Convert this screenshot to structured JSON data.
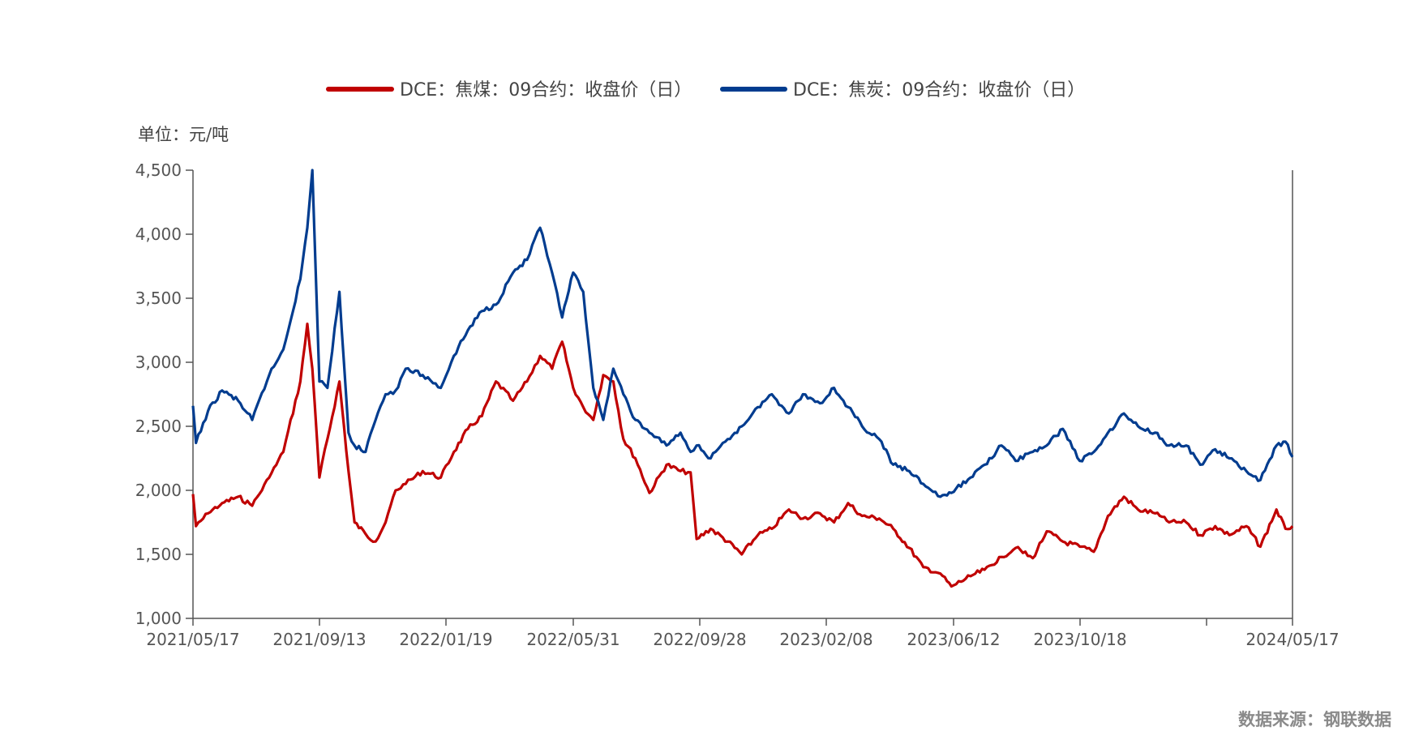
{
  "chart_data": {
    "type": "line",
    "unit_label": "单位：元/吨",
    "source": "数据来源：钢联数据",
    "legend_position": "top-center",
    "ylim": [
      1000,
      4500
    ],
    "y_ticks": [
      1000,
      1500,
      2000,
      2500,
      3000,
      3500,
      4000,
      4500
    ],
    "y_tick_labels": [
      "1,000",
      "1,500",
      "2,000",
      "2,500",
      "3,000",
      "3,500",
      "4,000",
      "4,500"
    ],
    "x_tick_labels": [
      "2021/05/17",
      "2021/09/13",
      "2022/01/19",
      "2022/05/31",
      "2022/09/28",
      "2023/02/08",
      "2023/06/12",
      "2023/10/18",
      "2024/05/17"
    ],
    "grid": false,
    "series": [
      {
        "name": "DCE：焦煤：09合约：收盘价（日）",
        "color": "#C00000",
        "x": [
          "2021-05-17",
          "2021-05-20",
          "2021-06-01",
          "2021-06-15",
          "2021-07-01",
          "2021-07-15",
          "2021-08-01",
          "2021-08-15",
          "2021-09-01",
          "2021-09-08",
          "2021-09-13",
          "2021-09-20",
          "2021-09-28",
          "2021-10-10",
          "2021-10-19",
          "2021-10-25",
          "2021-11-05",
          "2021-11-15",
          "2021-11-25",
          "2021-12-05",
          "2021-12-15",
          "2022-01-01",
          "2022-01-19",
          "2022-02-01",
          "2022-02-15",
          "2022-03-01",
          "2022-03-15",
          "2022-04-01",
          "2022-04-15",
          "2022-04-28",
          "2022-05-10",
          "2022-05-20",
          "2022-05-31",
          "2022-06-10",
          "2022-06-20",
          "2022-06-30",
          "2022-07-10",
          "2022-07-20",
          "2022-08-01",
          "2022-08-15",
          "2022-09-01",
          "2022-09-15",
          "2022-09-25",
          "2022-10-01",
          "2022-10-15",
          "2022-11-01",
          "2022-11-15",
          "2022-12-01",
          "2022-12-15",
          "2023-01-01",
          "2023-01-15",
          "2023-02-01",
          "2023-02-15",
          "2023-03-01",
          "2023-03-15",
          "2023-04-01",
          "2023-04-15",
          "2023-05-01",
          "2023-05-15",
          "2023-06-01",
          "2023-06-12",
          "2023-07-01",
          "2023-07-15",
          "2023-08-01",
          "2023-08-15",
          "2023-09-01",
          "2023-09-15",
          "2023-10-01",
          "2023-10-18",
          "2023-11-01",
          "2023-11-15",
          "2023-12-01",
          "2023-12-15",
          "2024-01-01",
          "2024-01-15",
          "2024-02-01",
          "2024-02-15",
          "2024-03-01",
          "2024-03-15",
          "2024-04-01",
          "2024-04-15",
          "2024-05-01",
          "2024-05-10",
          "2024-05-17"
        ],
        "values": [
          1970,
          1720,
          1820,
          1900,
          1950,
          1880,
          2100,
          2300,
          2850,
          3300,
          2950,
          2100,
          2400,
          2850,
          2150,
          1750,
          1660,
          1600,
          1750,
          2000,
          2050,
          2150,
          2100,
          2300,
          2480,
          2580,
          2850,
          2700,
          2850,
          3050,
          2950,
          3160,
          2800,
          2650,
          2550,
          2900,
          2850,
          2400,
          2250,
          1980,
          2200,
          2150,
          2140,
          1620,
          1700,
          1600,
          1500,
          1650,
          1700,
          1850,
          1780,
          1820,
          1750,
          1900,
          1800,
          1780,
          1700,
          1550,
          1400,
          1350,
          1250,
          1330,
          1380,
          1480,
          1550,
          1470,
          1680,
          1600,
          1560,
          1520,
          1800,
          1950,
          1850,
          1820,
          1750,
          1750,
          1650,
          1720,
          1650,
          1720,
          1560,
          1850,
          1700,
          1720
        ]
      },
      {
        "name": "DCE：焦炭：09合约：收盘价（日）",
        "color": "#003C8F",
        "x": [
          "2021-05-17",
          "2021-05-20",
          "2021-06-01",
          "2021-06-15",
          "2021-07-01",
          "2021-07-15",
          "2021-08-01",
          "2021-08-15",
          "2021-09-01",
          "2021-09-08",
          "2021-09-13",
          "2021-09-20",
          "2021-09-28",
          "2021-10-10",
          "2021-10-19",
          "2021-10-25",
          "2021-11-05",
          "2021-11-15",
          "2021-11-25",
          "2021-12-05",
          "2021-12-15",
          "2022-01-01",
          "2022-01-19",
          "2022-02-01",
          "2022-02-15",
          "2022-03-01",
          "2022-03-15",
          "2022-04-01",
          "2022-04-15",
          "2022-04-28",
          "2022-05-10",
          "2022-05-20",
          "2022-05-31",
          "2022-06-10",
          "2022-06-20",
          "2022-06-30",
          "2022-07-10",
          "2022-07-20",
          "2022-08-01",
          "2022-08-15",
          "2022-09-01",
          "2022-09-15",
          "2022-09-25",
          "2022-10-01",
          "2022-10-15",
          "2022-11-01",
          "2022-11-15",
          "2022-12-01",
          "2022-12-15",
          "2023-01-01",
          "2023-01-15",
          "2023-02-01",
          "2023-02-15",
          "2023-03-01",
          "2023-03-15",
          "2023-04-01",
          "2023-04-15",
          "2023-05-01",
          "2023-05-15",
          "2023-06-01",
          "2023-06-12",
          "2023-07-01",
          "2023-07-15",
          "2023-08-01",
          "2023-08-15",
          "2023-09-01",
          "2023-09-15",
          "2023-10-01",
          "2023-10-18",
          "2023-11-01",
          "2023-11-15",
          "2023-12-01",
          "2023-12-15",
          "2024-01-01",
          "2024-01-15",
          "2024-02-01",
          "2024-02-15",
          "2024-03-01",
          "2024-03-15",
          "2024-04-01",
          "2024-04-15",
          "2024-05-01",
          "2024-05-10",
          "2024-05-17"
        ],
        "values": [
          2660,
          2370,
          2620,
          2780,
          2700,
          2550,
          2900,
          3100,
          3650,
          4050,
          4500,
          2850,
          2800,
          3550,
          2450,
          2350,
          2300,
          2550,
          2750,
          2780,
          2950,
          2900,
          2800,
          3050,
          3250,
          3400,
          3450,
          3700,
          3800,
          4050,
          3700,
          3350,
          3700,
          3550,
          2800,
          2550,
          2950,
          2750,
          2550,
          2450,
          2350,
          2450,
          2300,
          2350,
          2250,
          2400,
          2500,
          2650,
          2750,
          2600,
          2750,
          2680,
          2800,
          2650,
          2500,
          2400,
          2200,
          2150,
          2050,
          1950,
          1980,
          2100,
          2200,
          2350,
          2230,
          2300,
          2350,
          2480,
          2230,
          2300,
          2450,
          2600,
          2500,
          2450,
          2350,
          2350,
          2200,
          2320,
          2250,
          2150,
          2080,
          2350,
          2380,
          2260
        ]
      }
    ]
  }
}
